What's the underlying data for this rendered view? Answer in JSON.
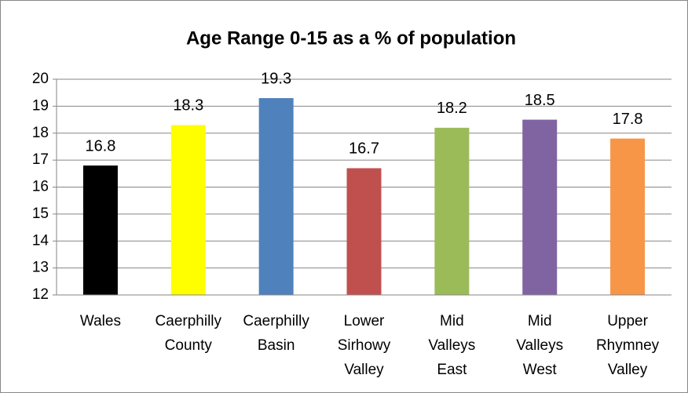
{
  "chart_data": {
    "type": "bar",
    "title": "Age Range 0-15 as a % of population",
    "categories": [
      [
        "Wales"
      ],
      [
        "Caerphilly",
        "County"
      ],
      [
        "Caerphilly",
        "Basin"
      ],
      [
        "Lower",
        "Sirhowy",
        "Valley"
      ],
      [
        "Mid",
        "Valleys",
        "East"
      ],
      [
        "Mid",
        "Valleys",
        "West"
      ],
      [
        "Upper",
        "Rhymney",
        "Valley"
      ]
    ],
    "values": [
      16.8,
      18.3,
      19.3,
      16.7,
      18.2,
      18.5,
      17.8
    ],
    "colors": [
      "#000000",
      "#ffff00",
      "#4f81bd",
      "#c0504d",
      "#9bbb59",
      "#8064a2",
      "#f79646"
    ],
    "ylim": [
      12,
      20
    ],
    "yticks": [
      12,
      13,
      14,
      15,
      16,
      17,
      18,
      19,
      20
    ],
    "grid": true
  }
}
